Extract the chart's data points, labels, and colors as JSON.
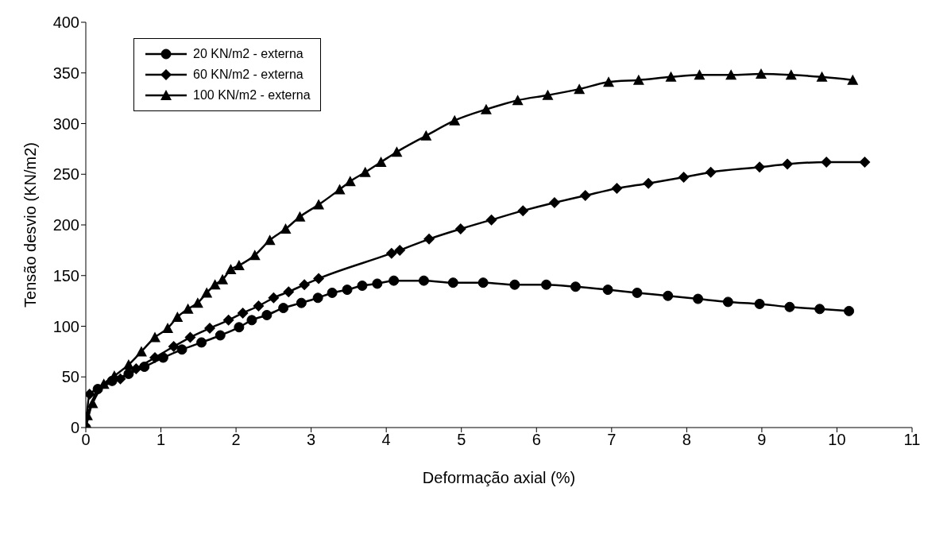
{
  "chart_data": {
    "type": "line",
    "xlabel": "Deformação axial (%)",
    "ylabel": "Tensão desvio (KN/m2)",
    "xlim": [
      0,
      11
    ],
    "xticks": [
      0,
      1,
      2,
      3,
      4,
      5,
      6,
      7,
      8,
      9,
      10,
      11
    ],
    "ylim": [
      0,
      400
    ],
    "yticks": [
      0,
      50,
      100,
      150,
      200,
      250,
      300,
      350,
      400
    ],
    "grid": false,
    "legend": "top left",
    "line_style": "solid",
    "series": [
      {
        "name": "20 KN/m2 - externa",
        "color": "#000000",
        "marker": "circle",
        "x": [
          0,
          0.16,
          0.35,
          0.57,
          0.78,
          1.03,
          1.28,
          1.54,
          1.79,
          2.04,
          2.21,
          2.41,
          2.63,
          2.87,
          3.09,
          3.28,
          3.48,
          3.68,
          3.88,
          4.1,
          4.5,
          4.89,
          5.29,
          5.71,
          6.13,
          6.52,
          6.95,
          7.34,
          7.75,
          8.15,
          8.55,
          8.97,
          9.37,
          9.77,
          10.16
        ],
        "values": [
          0,
          38,
          46,
          53,
          60,
          69,
          77,
          84,
          91,
          99,
          106,
          111,
          118,
          123,
          128,
          133,
          136,
          140,
          142,
          145,
          145,
          143,
          143,
          141,
          141,
          139,
          136,
          133,
          130,
          127,
          124,
          122,
          119,
          117,
          115
        ]
      },
      {
        "name": "60 KN/m2 - externa",
        "color": "#000000",
        "marker": "diamond",
        "x": [
          0,
          0.05,
          0.46,
          0.67,
          0.92,
          1.17,
          1.39,
          1.65,
          1.9,
          2.09,
          2.3,
          2.5,
          2.7,
          2.91,
          3.1,
          4.07,
          4.18,
          4.57,
          4.99,
          5.4,
          5.82,
          6.24,
          6.65,
          7.07,
          7.49,
          7.96,
          8.32,
          8.97,
          9.34,
          9.86,
          10.37
        ],
        "values": [
          0,
          33,
          48,
          58,
          69,
          80,
          89,
          98,
          106,
          113,
          120,
          128,
          134,
          141,
          147,
          172,
          175,
          186,
          196,
          205,
          214,
          222,
          229,
          236,
          241,
          247,
          252,
          257,
          260,
          262,
          262
        ]
      },
      {
        "name": "100 KN/m2 - externa",
        "color": "#000000",
        "marker": "triangle",
        "x": [
          0,
          0.02,
          0.09,
          0.24,
          0.38,
          0.57,
          0.74,
          0.92,
          1.09,
          1.22,
          1.36,
          1.49,
          1.61,
          1.72,
          1.82,
          1.93,
          2.04,
          2.25,
          2.45,
          2.66,
          2.85,
          3.1,
          3.38,
          3.52,
          3.72,
          3.93,
          4.14,
          4.53,
          4.91,
          5.33,
          5.75,
          6.15,
          6.57,
          6.96,
          7.36,
          7.79,
          8.17,
          8.59,
          8.99,
          9.39,
          9.8,
          10.21
        ],
        "values": [
          0,
          12,
          24,
          43,
          51,
          62,
          75,
          89,
          98,
          109,
          117,
          123,
          133,
          141,
          146,
          156,
          160,
          170,
          185,
          196,
          208,
          220,
          235,
          243,
          252,
          262,
          272,
          288,
          303,
          314,
          323,
          328,
          334,
          341,
          343,
          346,
          348,
          348,
          349,
          348,
          346,
          343
        ]
      }
    ]
  }
}
